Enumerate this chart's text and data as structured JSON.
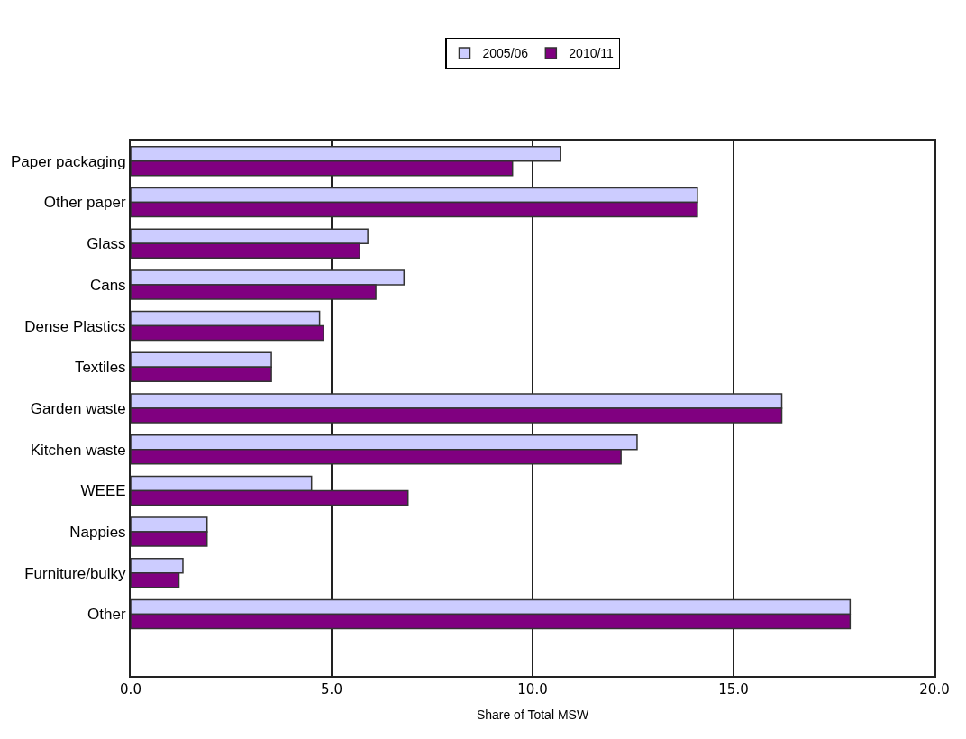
{
  "chart_data": {
    "type": "bar",
    "orientation": "horizontal",
    "categories": [
      "Paper packaging",
      "Other paper",
      "Glass",
      "Cans",
      "Dense Plastics",
      "Textiles",
      "Garden waste",
      "Kitchen waste",
      "WEEE",
      "Nappies",
      "Furniture/bulky",
      "Other",
      null
    ],
    "series": [
      {
        "name": "2005/06",
        "color": "#ccccff",
        "values": [
          10.7,
          14.1,
          5.9,
          6.8,
          4.7,
          3.5,
          16.2,
          12.6,
          4.5,
          1.9,
          1.3,
          17.9,
          null
        ]
      },
      {
        "name": "2010/11",
        "color": "#800080",
        "values": [
          9.5,
          14.1,
          5.7,
          6.1,
          4.8,
          3.5,
          16.2,
          12.2,
          6.9,
          1.9,
          1.2,
          17.9,
          null
        ]
      }
    ],
    "xlabel": "Share of Total MSW",
    "xlim": [
      0,
      20
    ],
    "xticks": [
      {
        "value": 0,
        "label": "0.0"
      },
      {
        "value": 5,
        "label": "5.0"
      },
      {
        "value": 10,
        "label": "10.0"
      },
      {
        "value": 15,
        "label": "15.0"
      },
      {
        "value": 20,
        "label": "20.0"
      }
    ],
    "grid": "x",
    "legend": "top"
  }
}
